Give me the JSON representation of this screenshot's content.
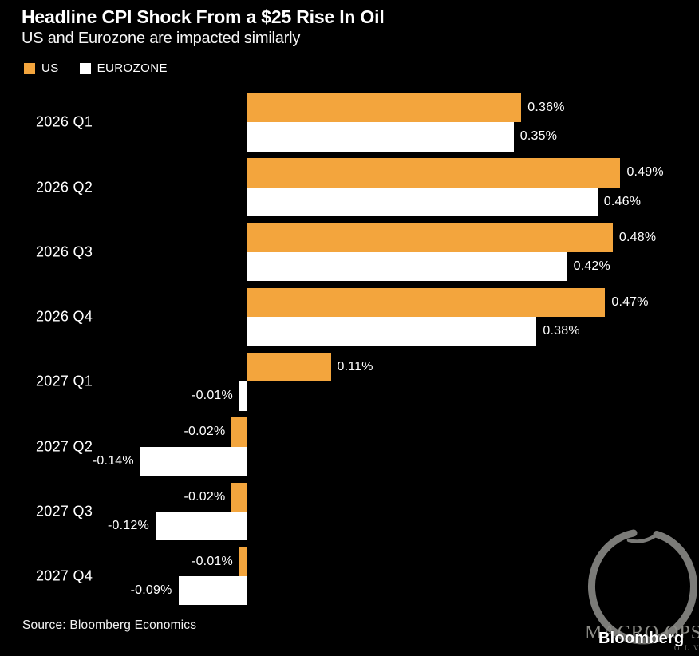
{
  "header": {
    "title": "Headline CPI Shock From a $25 Rise In Oil",
    "subtitle": "US and Eurozone are impacted similarly"
  },
  "chart_data": {
    "type": "bar",
    "orientation": "horizontal",
    "title": "Headline CPI Shock From a $25 Rise In Oil",
    "subtitle": "US and Eurozone are impacted similarly",
    "categories": [
      "2026 Q1",
      "2026 Q2",
      "2026 Q3",
      "2026 Q4",
      "2027 Q1",
      "2027 Q2",
      "2027 Q3",
      "2027 Q4"
    ],
    "series": [
      {
        "name": "US",
        "color": "#F3A53D",
        "values": [
          0.36,
          0.49,
          0.48,
          0.47,
          0.11,
          -0.02,
          -0.02,
          -0.01
        ],
        "labels": [
          "0.36%",
          "0.49%",
          "0.48%",
          "0.47%",
          "0.11%",
          "-0.02%",
          "-0.02%",
          "-0.01%"
        ]
      },
      {
        "name": "EUROZONE",
        "color": "#FFFFFF",
        "values": [
          0.35,
          0.46,
          0.42,
          0.38,
          -0.01,
          -0.14,
          -0.12,
          -0.09
        ],
        "labels": [
          "0.35%",
          "0.46%",
          "0.42%",
          "0.38%",
          "-0.01%",
          "-0.14%",
          "-0.12%",
          "-0.09%"
        ]
      }
    ],
    "value_suffix": "%",
    "xlim": [
      -0.2,
      0.55
    ],
    "grid": false,
    "legend_position": "top-left"
  },
  "footer": {
    "source": "Source: Bloomberg Economics",
    "logo": "Bloomberg"
  },
  "watermark": {
    "text": "MACRO OPS",
    "tagline_fragment": "O L V E",
    "color": "#8d8d88"
  }
}
